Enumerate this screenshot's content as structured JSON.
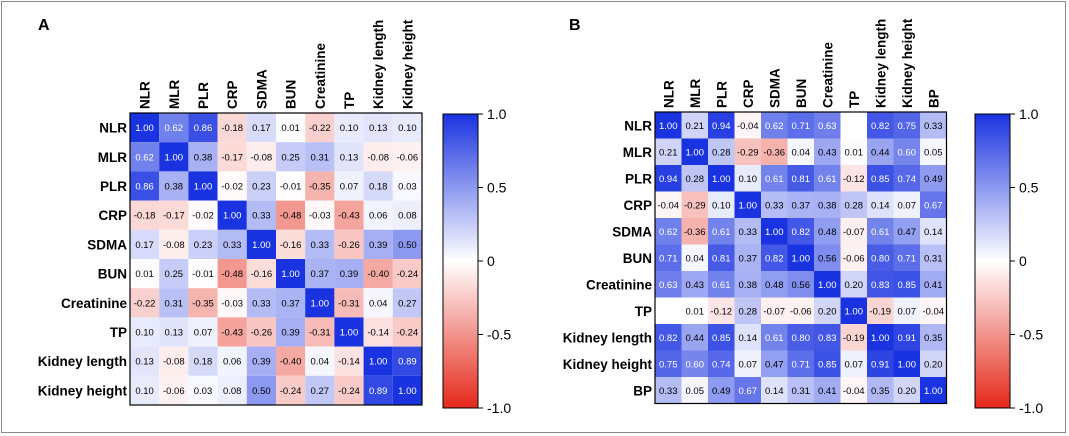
{
  "chart_data": [
    {
      "type": "heatmap",
      "panel_label": "A",
      "variables": [
        "NLR",
        "MLR",
        "PLR",
        "CRP",
        "SDMA",
        "BUN",
        "Creatinine",
        "TP",
        "Kidney length",
        "Kidney height"
      ],
      "matrix": [
        [
          "1.00",
          "0.62",
          "0.86",
          "-0.18",
          "0.17",
          "0.01",
          "-0.22",
          "0.10",
          "0.13",
          "0.10"
        ],
        [
          "0.62",
          "1.00",
          "0.38",
          "-0.17",
          "-0.08",
          "0.25",
          "0.31",
          "0.13",
          "-0.08",
          "-0.06"
        ],
        [
          "0.86",
          "0.38",
          "1.00",
          "-0.02",
          "0.23",
          "-0.01",
          "-0.35",
          "0.07",
          "0.18",
          "0.03"
        ],
        [
          "-0.18",
          "-0.17",
          "-0.02",
          "1.00",
          "0.33",
          "-0.48",
          "-0.03",
          "-0.43",
          "0.06",
          "0.08"
        ],
        [
          "0.17",
          "-0.08",
          "0.23",
          "0.33",
          "1.00",
          "-0.16",
          "0.33",
          "-0.26",
          "0.39",
          "0.50"
        ],
        [
          "0.01",
          "0.25",
          "-0.01",
          "-0.48",
          "-0.16",
          "1.00",
          "0.37",
          "0.39",
          "-0.40",
          "-0.24"
        ],
        [
          "-0.22",
          "0.31",
          "-0.35",
          "-0.03",
          "0.33",
          "0.37",
          "1.00",
          "-0.31",
          "0.04",
          "0.27"
        ],
        [
          "0.10",
          "0.13",
          "0.07",
          "-0.43",
          "-0.26",
          "0.39",
          "-0.31",
          "1.00",
          "-0.14",
          "-0.24"
        ],
        [
          "0.13",
          "-0.08",
          "0.18",
          "0.06",
          "0.39",
          "-0.40",
          "0.04",
          "-0.14",
          "1.00",
          "0.89"
        ],
        [
          "0.10",
          "-0.06",
          "0.03",
          "0.08",
          "0.50",
          "-0.24",
          "0.27",
          "-0.24",
          "0.89",
          "1.00"
        ]
      ],
      "colorbar": {
        "ticks": [
          "1.0",
          "0.5",
          "0",
          "-0.5",
          "-1.0"
        ],
        "range": [
          -1,
          1
        ]
      }
    },
    {
      "type": "heatmap",
      "panel_label": "B",
      "variables": [
        "NLR",
        "MLR",
        "PLR",
        "CRP",
        "SDMA",
        "BUN",
        "Creatinine",
        "TP",
        "Kidney length",
        "Kidney height",
        "BP"
      ],
      "matrix": [
        [
          "1.00",
          "0.21",
          "0.94",
          "-0.04",
          "0.62",
          "0.71",
          "0.63",
          "",
          "0.82",
          "0.75",
          "0.33"
        ],
        [
          "0.21",
          "1.00",
          "0.28",
          "-0.29",
          "-0.36",
          "0.04",
          "0.43",
          "0.01",
          "0.44",
          "0.60",
          "0.05"
        ],
        [
          "0.94",
          "0.28",
          "1.00",
          "0.10",
          "0.61",
          "0.81",
          "0.61",
          "-0.12",
          "0.85",
          "0.74",
          "0.49"
        ],
        [
          "-0.04",
          "-0.29",
          "0.10",
          "1.00",
          "0.33",
          "0.37",
          "0.38",
          "0.28",
          "0.14",
          "0.07",
          "0.67"
        ],
        [
          "0.62",
          "-0.36",
          "0.61",
          "0.33",
          "1.00",
          "0.82",
          "0.48",
          "-0.07",
          "0.61",
          "0.47",
          "0.14"
        ],
        [
          "0.71",
          "0.04",
          "0.81",
          "0.37",
          "0.82",
          "1.00",
          "0.56",
          "-0.06",
          "0.80",
          "0.71",
          "0.31"
        ],
        [
          "0.63",
          "0.43",
          "0.61",
          "0.38",
          "0.48",
          "0.56",
          "1.00",
          "0.20",
          "0.83",
          "0.85",
          "0.41"
        ],
        [
          "",
          "0.01",
          "-0.12",
          "0.28",
          "-0.07",
          "-0.06",
          "0.20",
          "1.00",
          "-0.19",
          "0.07",
          "-0.04"
        ],
        [
          "0.82",
          "0.44",
          "0.85",
          "0.14",
          "0.61",
          "0.80",
          "0.83",
          "-0.19",
          "1.00",
          "0.91",
          "0.35"
        ],
        [
          "0.75",
          "0.60",
          "0.74",
          "0.07",
          "0.47",
          "0.71",
          "0.85",
          "0.07",
          "0.91",
          "1.00",
          "0.20"
        ],
        [
          "0.33",
          "0.05",
          "0.49",
          "0.67",
          "0.14",
          "0.31",
          "0.41",
          "-0.04",
          "0.35",
          "0.20",
          "1.00"
        ]
      ],
      "colorbar": {
        "ticks": [
          "1.0",
          "0.5",
          "0",
          "-0.5",
          "-1.0"
        ],
        "range": [
          -1,
          1
        ]
      }
    }
  ],
  "colors": {
    "positive": "#1a33e0",
    "zero": "#ffffff",
    "negative": "#e5281a",
    "frame": "#8a8a8a"
  }
}
